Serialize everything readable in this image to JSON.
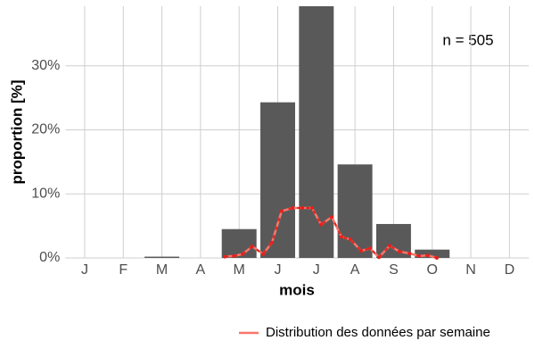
{
  "chart_data": {
    "type": "bar",
    "x_label": "mois",
    "y_label": "proportion [%]",
    "annotation": "n = 505",
    "categories": [
      "J",
      "F",
      "M",
      "A",
      "M",
      "J",
      "J",
      "A",
      "S",
      "O",
      "N",
      "D"
    ],
    "values": [
      0,
      0,
      0.2,
      0,
      4.5,
      24.3,
      39.3,
      14.6,
      5.3,
      1.3,
      0,
      0
    ],
    "color": "#595959",
    "line": {
      "name": "Distribution des données par semaine",
      "color": "#f8766d",
      "point_color": "#e8201a",
      "x": [
        4.63,
        4.86,
        5.09,
        5.34,
        5.62,
        5.85,
        6.1,
        6.38,
        6.64,
        6.89,
        7.12,
        7.4,
        7.65,
        7.88,
        8.16,
        8.39,
        8.62,
        8.9,
        9.15,
        9.41,
        9.66,
        9.89,
        10.12
      ],
      "values": [
        0.2,
        0.3,
        0.6,
        1.8,
        0.6,
        2.4,
        7.3,
        7.8,
        7.8,
        7.8,
        5.2,
        6.4,
        3.3,
        2.9,
        1.1,
        1.5,
        0.1,
        1.9,
        1.0,
        0.7,
        0.3,
        0.4,
        0
      ]
    },
    "xlim": [
      0.5,
      12.5
    ],
    "ylim": [
      0,
      39.3
    ],
    "yticks": [
      {
        "value": 0,
        "label": "0%"
      },
      {
        "value": 10,
        "label": "10%"
      },
      {
        "value": 20,
        "label": "20%"
      },
      {
        "value": 30,
        "label": "30%"
      }
    ],
    "grid": true
  }
}
